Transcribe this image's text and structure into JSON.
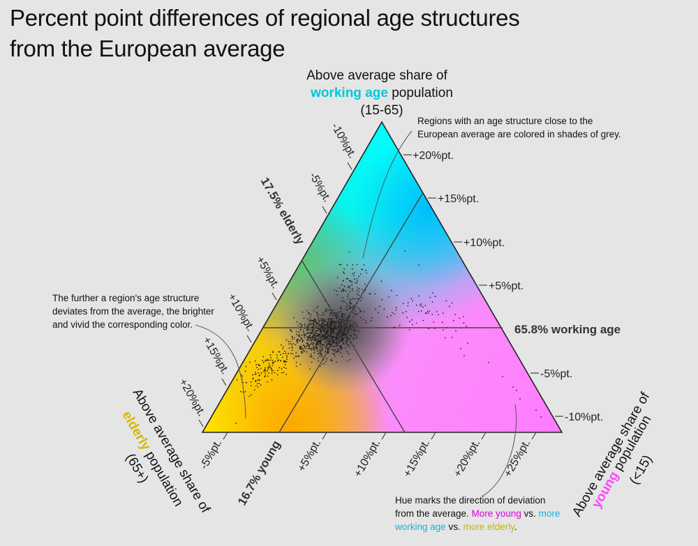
{
  "title": {
    "line1": "Percent point differences of regional age structures",
    "line2": "from the European average"
  },
  "colors": {
    "working_age": "#00c8d8",
    "young": "#ff44ff",
    "elderly": "#d4b800",
    "note_young": "#d800d8",
    "note_working": "#1ab0e0",
    "note_elderly": "#c8b400",
    "axis": "#444444",
    "background": "#e5e5e5"
  },
  "labels": {
    "top": {
      "line1": "Above average share of",
      "line2_highlight": "working age",
      "line2_rest": " population",
      "line3": "(15-65)"
    },
    "left": {
      "line1": "Above average share of",
      "line2_highlight": "elderly",
      "line2_rest": " population",
      "line3": "(65+)"
    },
    "right": {
      "line1": "Above average share of",
      "line2_highlight": "young",
      "line2_rest": " population",
      "line3": "(<15)"
    },
    "avg_working": "65.8% working age",
    "avg_elderly": "17.5% elderly",
    "avg_young": "16.7% young"
  },
  "annotations": {
    "grey": {
      "line1": "Regions with an age structure close to the",
      "line2": "European average are colored in shades of grey."
    },
    "bright": {
      "line1": "The further a region's age structure",
      "line2": "deviates from the average, the brighter",
      "line3": "and vivid the corresponding color."
    },
    "hue": {
      "line1": "Hue marks the direction of deviation",
      "line2_a": "from the average. ",
      "line2_b": "More young",
      "line2_c": " vs. ",
      "line2_d": "more",
      "line3_a": "working age",
      "line3_b": " vs. ",
      "line3_c": "more elderly",
      "line3_d": "."
    }
  },
  "chart_data": {
    "type": "ternary-scatter",
    "reference": {
      "working_age_pct": 65.8,
      "elderly_pct": 17.5,
      "young_pct": 16.7
    },
    "axes": {
      "working_age": {
        "ticks": [
          "+20%pt.",
          "+15%pt.",
          "+10%pt.",
          "+5%pt.",
          "-5%pt.",
          "-10%pt."
        ]
      },
      "elderly": {
        "ticks": [
          "-10%pt.",
          "-5%pt.",
          "+5%pt.",
          "+10%pt.",
          "+15%pt.",
          "+20%pt."
        ]
      },
      "young": {
        "ticks": [
          "-5%pt.",
          "+5%pt.",
          "+10%pt.",
          "+15%pt.",
          "+20%pt.",
          "+25%pt."
        ]
      }
    },
    "point_count_estimate": 1300
  }
}
